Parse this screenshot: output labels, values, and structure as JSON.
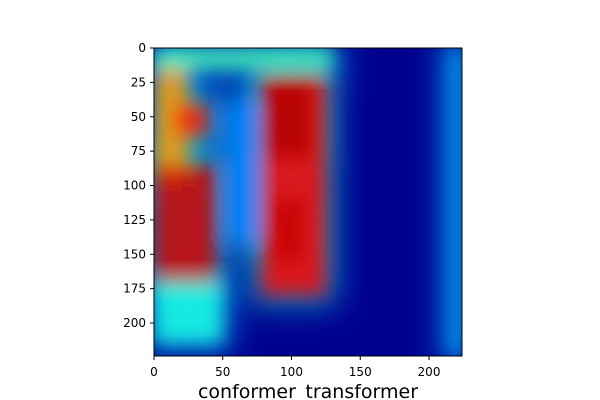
{
  "chart_data": {
    "type": "heatmap",
    "title": "",
    "xlabel": "conformer_transformer",
    "ylabel": "",
    "xlim": [
      0,
      224
    ],
    "ylim": [
      224,
      0
    ],
    "x_ticks": [
      0,
      50,
      100,
      150,
      200
    ],
    "y_ticks": [
      0,
      25,
      50,
      75,
      100,
      125,
      150,
      175,
      200
    ],
    "colormap": "jet (overlaid on spectrogram)",
    "background_value": 0.05,
    "hot_regions": [
      {
        "x_range": [
          0,
          25
        ],
        "y_range": [
          15,
          100
        ],
        "intensity": 0.72
      },
      {
        "x_range": [
          15,
          40
        ],
        "y_range": [
          40,
          65
        ],
        "intensity": 0.85
      },
      {
        "x_range": [
          0,
          45
        ],
        "y_range": [
          85,
          175
        ],
        "intensity": 0.92
      },
      {
        "x_range": [
          0,
          50
        ],
        "y_range": [
          170,
          215
        ],
        "intensity": 0.4
      },
      {
        "x_range": [
          78,
          125
        ],
        "y_range": [
          20,
          180
        ],
        "intensity": 0.88
      },
      {
        "x_range": [
          80,
          115
        ],
        "y_range": [
          25,
          80
        ],
        "intensity": 0.95
      },
      {
        "x_range": [
          85,
          110
        ],
        "y_range": [
          110,
          155
        ],
        "intensity": 0.93
      },
      {
        "x_range": [
          55,
          75
        ],
        "y_range": [
          40,
          140
        ],
        "intensity": 0.25
      },
      {
        "x_range": [
          0,
          130
        ],
        "y_range": [
          0,
          15
        ],
        "intensity": 0.45
      },
      {
        "x_range": [
          215,
          224
        ],
        "y_range": [
          0,
          224
        ],
        "intensity": 0.3
      }
    ]
  }
}
